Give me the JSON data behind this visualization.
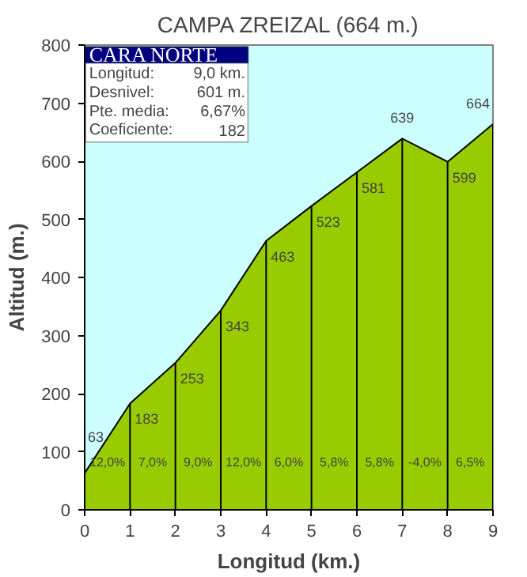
{
  "chart_data": {
    "type": "area",
    "title": "CAMPA ZREIZAL (664 m.)",
    "xlabel": "Longitud (km.)",
    "ylabel": "Altitud (m.)",
    "x": [
      0,
      1,
      2,
      3,
      4,
      5,
      6,
      7,
      8,
      9
    ],
    "series": [
      {
        "color": "#99cc00",
        "values": [
          63,
          183,
          253,
          343,
          463,
          523,
          581,
          639,
          599,
          664
        ]
      }
    ],
    "data_labels": true,
    "xlim": [
      0,
      9
    ],
    "ylim": [
      0,
      800
    ],
    "xticks": [
      0,
      1,
      2,
      3,
      4,
      5,
      6,
      7,
      8,
      9
    ],
    "yticks": [
      0,
      100,
      200,
      300,
      400,
      500,
      600,
      700,
      800
    ],
    "grid": "x",
    "annotations": [
      "CARA NORTE",
      "Longitud:",
      "9,0 km.",
      "Desnivel:",
      "601 m.",
      "Pte. media:",
      "6,67%",
      "Coeficiente:",
      "182",
      "12,0%",
      "7,0%",
      "9,0%",
      "12,0%",
      "6,0%",
      "5,8%",
      "5,8%",
      "-4,0%",
      "6,5%"
    ]
  }
}
